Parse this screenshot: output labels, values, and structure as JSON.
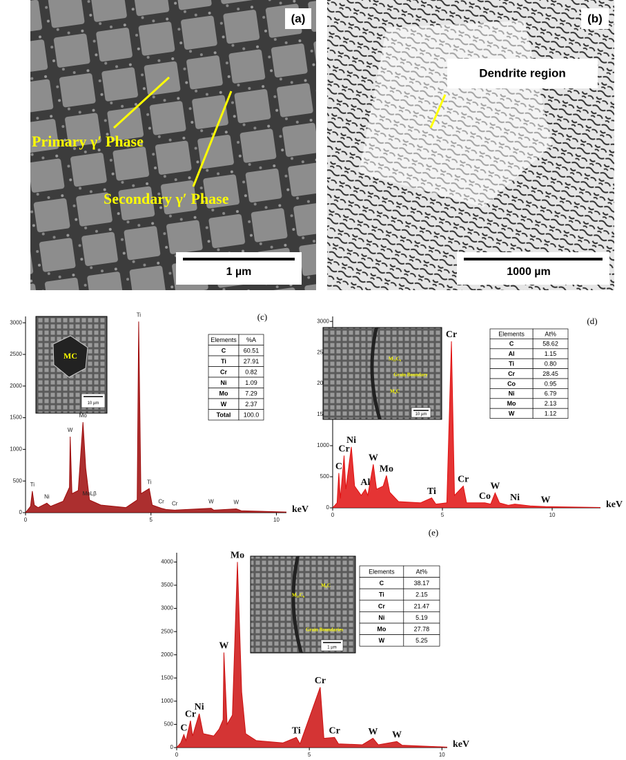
{
  "images": [
    {
      "panel": "(a)",
      "annotations": [
        "Primary γ′ Phase",
        "Secondary γ′ Phase"
      ],
      "scale_bar": "1 µm"
    },
    {
      "panel": "(b)",
      "annotations": [
        "Dendrite region"
      ],
      "scale_bar": "1000 µm"
    }
  ],
  "chart_data": [
    {
      "type": "line",
      "panel": "(c)",
      "x_label": "keV",
      "color": "#9e0b0b",
      "x": [
        0,
        0.2,
        0.27,
        0.35,
        0.5,
        0.85,
        1.0,
        1.5,
        1.75,
        1.78,
        1.85,
        2.1,
        2.29,
        2.4,
        2.55,
        3,
        4,
        4.45,
        4.51,
        4.6,
        4.93,
        5.05,
        5.41,
        5.6,
        5.95,
        7.4,
        7.5,
        8.4,
        8.6,
        10.4
      ],
      "values": [
        0,
        100,
        340,
        120,
        80,
        150,
        100,
        180,
        400,
        1200,
        300,
        350,
        1430,
        700,
        200,
        120,
        80,
        200,
        3020,
        300,
        380,
        120,
        70,
        50,
        40,
        70,
        40,
        60,
        30,
        10
      ],
      "point_labels": [
        null,
        null,
        "Ti",
        null,
        null,
        "Ni",
        null,
        null,
        null,
        "W",
        null,
        null,
        "Mo",
        null,
        "MoLβ",
        null,
        null,
        null,
        "Ti",
        null,
        "Ti",
        null,
        "Cr",
        null,
        "Cr",
        "W",
        null,
        "W",
        null,
        null
      ],
      "xlim": [
        0,
        10.4
      ],
      "xticks": [
        0,
        5,
        10
      ],
      "ylim": [
        0,
        3100
      ],
      "yticks": [
        0,
        500,
        1000,
        1500,
        2000,
        2500,
        3000
      ],
      "inset": {
        "annotations": [
          "MC"
        ],
        "scale_bar": "10 µm"
      },
      "table": {
        "header": [
          "Elements",
          "%A"
        ],
        "rows": [
          [
            "C",
            "60.51"
          ],
          [
            "Ti",
            "27.91"
          ],
          [
            "Cr",
            "0.82"
          ],
          [
            "Ni",
            "1.09"
          ],
          [
            "Mo",
            "7.29"
          ],
          [
            "W",
            "2.37"
          ],
          [
            "Total",
            "100.0"
          ]
        ]
      }
    },
    {
      "type": "line",
      "panel": "(d)",
      "x_label": "keV",
      "color": "#e01010",
      "x": [
        0,
        0.2,
        0.28,
        0.35,
        0.52,
        0.6,
        0.85,
        1.0,
        1.3,
        1.49,
        1.6,
        1.85,
        2.0,
        2.3,
        2.45,
        2.6,
        3.0,
        4.0,
        4.51,
        4.7,
        5.2,
        5.41,
        5.55,
        5.95,
        6.1,
        6.93,
        7.2,
        7.4,
        7.6,
        8.0,
        8.3,
        9.0,
        9.7,
        12.2
      ],
      "values": [
        0,
        80,
        560,
        150,
        840,
        300,
        980,
        350,
        200,
        300,
        200,
        700,
        300,
        350,
        520,
        250,
        100,
        80,
        160,
        60,
        80,
        2680,
        200,
        350,
        80,
        80,
        60,
        240,
        80,
        40,
        60,
        30,
        20,
        5
      ],
      "point_labels": [
        null,
        null,
        "C",
        null,
        "Cr",
        null,
        "Ni",
        null,
        null,
        "Al",
        null,
        "W",
        null,
        null,
        "Mo",
        null,
        null,
        null,
        "Ti",
        null,
        null,
        "Cr",
        null,
        "Cr",
        null,
        "Co",
        null,
        "W",
        null,
        null,
        "Ni",
        null,
        "W",
        null
      ],
      "xlim": [
        0,
        12.2
      ],
      "xticks": [
        0,
        5,
        10
      ],
      "ylim": [
        0,
        3080
      ],
      "yticks": [
        0,
        500,
        1000,
        1500,
        2000,
        2500,
        3000
      ],
      "inset": {
        "annotations": [
          "M₂₃C₆",
          "Grain Boundary",
          "M₆C"
        ],
        "scale_bar": "10 µm"
      },
      "table": {
        "header": [
          "Elements",
          "At%"
        ],
        "rows": [
          [
            "C",
            "58.62"
          ],
          [
            "Al",
            "1.15"
          ],
          [
            "Ti",
            "0.80"
          ],
          [
            "Cr",
            "28.45"
          ],
          [
            "Co",
            "0.95"
          ],
          [
            "Ni",
            "6.79"
          ],
          [
            "Mo",
            "2.13"
          ],
          [
            "W",
            "1.12"
          ]
        ]
      }
    },
    {
      "type": "line",
      "panel": "(e)",
      "x_label": "keV",
      "color": "#cc1111",
      "x": [
        0,
        0.15,
        0.27,
        0.35,
        0.52,
        0.6,
        0.85,
        1.0,
        1.4,
        1.6,
        1.75,
        1.78,
        1.9,
        2.1,
        2.29,
        2.45,
        2.6,
        3.0,
        4.0,
        4.51,
        4.65,
        5.41,
        5.55,
        5.95,
        6.1,
        7.0,
        7.4,
        7.6,
        8.3,
        8.5,
        10.2
      ],
      "values": [
        0,
        100,
        280,
        150,
        580,
        250,
        730,
        300,
        250,
        400,
        600,
        2050,
        500,
        700,
        4000,
        1200,
        300,
        150,
        100,
        220,
        80,
        1300,
        200,
        220,
        80,
        60,
        200,
        60,
        130,
        50,
        10
      ],
      "point_labels": [
        null,
        null,
        "C",
        null,
        "Cr",
        null,
        "Ni",
        null,
        null,
        null,
        null,
        "W",
        null,
        null,
        "Mo",
        null,
        null,
        null,
        null,
        "Ti",
        null,
        "Cr",
        null,
        "Cr",
        null,
        null,
        "W",
        null,
        "W",
        null,
        null
      ],
      "xlim": [
        0,
        10.2
      ],
      "xticks": [
        0,
        5,
        10
      ],
      "ylim": [
        0,
        4200
      ],
      "yticks": [
        0,
        500,
        1000,
        1500,
        2000,
        2500,
        3000,
        3500,
        4000
      ],
      "inset": {
        "annotations": [
          "M₆C",
          "M₂₃C₆",
          "Grain Boundaries"
        ],
        "scale_bar": "1 µm"
      },
      "table": {
        "header": [
          "Elements",
          "At%"
        ],
        "rows": [
          [
            "C",
            "38.17"
          ],
          [
            "Ti",
            "2.15"
          ],
          [
            "Cr",
            "21.47"
          ],
          [
            "Ni",
            "5.19"
          ],
          [
            "Mo",
            "27.78"
          ],
          [
            "W",
            "5.25"
          ]
        ]
      }
    }
  ]
}
